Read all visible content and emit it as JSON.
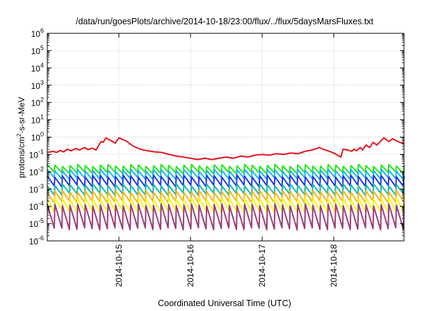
{
  "chart_data": {
    "type": "line",
    "title": "/data/run/goesPlots/archive/2014-10-18/23:00/flux/../flux/5daysMarsFluxes.txt",
    "xlabel": "Coordinated Universal Time (UTC)",
    "ylabel": {
      "base": "protons/cm",
      "sup": "2",
      "rest": "-s-sr-MeV"
    },
    "yscale": "log",
    "ylim_exp": [
      -6,
      6
    ],
    "ytick_exps": [
      -6,
      -5,
      -4,
      -3,
      -2,
      -1,
      0,
      1,
      2,
      3,
      4,
      5,
      6
    ],
    "ytick_base": "10",
    "xlim_days": [
      14.0,
      18.98
    ],
    "xticks": [
      {
        "day": 15,
        "label": "2014-10-15"
      },
      {
        "day": 16,
        "label": "2014-10-16"
      },
      {
        "day": 17,
        "label": "2014-10-17"
      },
      {
        "day": 18,
        "label": "2014-10-18"
      }
    ],
    "grid": true,
    "series": [
      {
        "color": "#e8131d",
        "points": [
          [
            14.0,
            0.13
          ],
          [
            14.08,
            0.15
          ],
          [
            14.13,
            0.13
          ],
          [
            14.18,
            0.17
          ],
          [
            14.23,
            0.14
          ],
          [
            14.28,
            0.2
          ],
          [
            14.33,
            0.16
          ],
          [
            14.4,
            0.22
          ],
          [
            14.45,
            0.18
          ],
          [
            14.52,
            0.25
          ],
          [
            14.57,
            0.19
          ],
          [
            14.63,
            0.23
          ],
          [
            14.68,
            0.18
          ],
          [
            14.75,
            0.55
          ],
          [
            14.78,
            0.5
          ],
          [
            14.82,
            0.9
          ],
          [
            14.95,
            0.45
          ],
          [
            15.0,
            0.9
          ],
          [
            15.1,
            0.6
          ],
          [
            15.2,
            0.3
          ],
          [
            15.3,
            0.2
          ],
          [
            15.4,
            0.16
          ],
          [
            15.5,
            0.14
          ],
          [
            15.6,
            0.13
          ],
          [
            15.7,
            0.1
          ],
          [
            15.8,
            0.08
          ],
          [
            15.9,
            0.07
          ],
          [
            16.0,
            0.06
          ],
          [
            16.1,
            0.05
          ],
          [
            16.2,
            0.06
          ],
          [
            16.3,
            0.05
          ],
          [
            16.4,
            0.06
          ],
          [
            16.5,
            0.07
          ],
          [
            16.6,
            0.06
          ],
          [
            16.7,
            0.08
          ],
          [
            16.8,
            0.07
          ],
          [
            16.9,
            0.09
          ],
          [
            17.0,
            0.1
          ],
          [
            17.1,
            0.09
          ],
          [
            17.2,
            0.11
          ],
          [
            17.3,
            0.1
          ],
          [
            17.4,
            0.12
          ],
          [
            17.5,
            0.11
          ],
          [
            17.6,
            0.15
          ],
          [
            17.7,
            0.18
          ],
          [
            17.8,
            0.25
          ],
          [
            17.85,
            0.2
          ],
          [
            17.92,
            0.16
          ],
          [
            18.0,
            0.12
          ],
          [
            18.1,
            0.07
          ],
          [
            18.13,
            0.2
          ],
          [
            18.2,
            0.18
          ],
          [
            18.25,
            0.15
          ],
          [
            18.28,
            0.2
          ],
          [
            18.32,
            0.16
          ],
          [
            18.37,
            0.25
          ],
          [
            18.4,
            0.18
          ],
          [
            18.45,
            0.35
          ],
          [
            18.5,
            0.25
          ],
          [
            18.55,
            0.5
          ],
          [
            18.6,
            0.35
          ],
          [
            18.7,
            0.9
          ],
          [
            18.77,
            0.55
          ],
          [
            18.82,
            0.8
          ],
          [
            18.9,
            0.55
          ],
          [
            18.98,
            0.4
          ]
        ]
      },
      {
        "color": "#22e81a",
        "sawtooth": {
          "hi": 0.023,
          "lo": 0.0085
        }
      },
      {
        "color": "#1ab4ec",
        "sawtooth": {
          "hi": 0.012,
          "lo": 0.004
        }
      },
      {
        "color": "#1c38e6",
        "sawtooth": {
          "hi": 0.0055,
          "lo": 0.0015
        }
      },
      {
        "color": "#1ab8a6",
        "sawtooth": {
          "hi": 0.0017,
          "lo": 0.0005
        }
      },
      {
        "color": "#f0b418",
        "sawtooth": {
          "hi": 0.0007,
          "lo": 0.00018
        }
      },
      {
        "color": "#f5f51a",
        "sawtooth": {
          "hi": 0.00028,
          "lo": 5e-05
        }
      },
      {
        "color": "#9c3d78",
        "sawtooth": {
          "hi": 0.00012,
          "lo": 5e-06
        }
      }
    ],
    "sawtooth_teeth": 47
  }
}
